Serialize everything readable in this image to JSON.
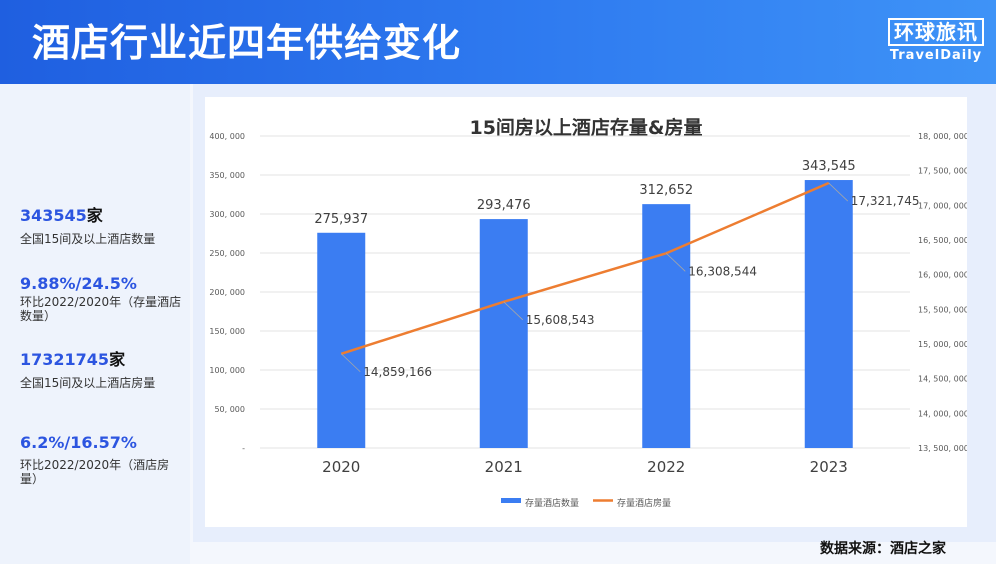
{
  "header": {
    "title": "酒店行业近四年供给变化",
    "logo_cn": "环球旅讯",
    "logo_en": "TravelDaily"
  },
  "stats": [
    {
      "value": "343545",
      "unit": "家",
      "desc": "全国15间及以上酒店数量"
    },
    {
      "value": "9.88%/24.5%",
      "unit": "",
      "desc": "环比2022/2020年（存量酒店数量）"
    },
    {
      "value": "17321745",
      "unit": "家",
      "desc": "全国15间及以上酒店房量"
    },
    {
      "value": "6.2%/16.57%",
      "unit": "",
      "desc": "环比2022/2020年（酒店房量）"
    }
  ],
  "source": "数据来源：酒店之家",
  "chart_data": {
    "type": "bar",
    "title": "15间房以上酒店存量&房量",
    "categories": [
      "2020",
      "2021",
      "2022",
      "2023"
    ],
    "series": [
      {
        "name": "存量酒店数量",
        "type": "bar",
        "axis": "left",
        "values": [
          275937,
          293476,
          312652,
          343545
        ],
        "labels": [
          "275,937",
          "293,476",
          "312,652",
          "343,545"
        ]
      },
      {
        "name": "存量酒店房量",
        "type": "line",
        "axis": "right",
        "values": [
          14859166,
          15608543,
          16308544,
          17321745
        ],
        "labels": [
          "14,859,166",
          "15,608,543",
          "16,308,544",
          "17,321,745"
        ]
      }
    ],
    "ylim_left": [
      0,
      400000
    ],
    "ylim_right": [
      13500000,
      18000000
    ],
    "yticks_left": [
      "-",
      "50, 000",
      "100, 000",
      "150, 000",
      "200, 000",
      "250, 000",
      "300, 000",
      "350, 000",
      "400, 000"
    ],
    "yticks_right": [
      "13, 500, 000",
      "14, 000, 000",
      "14, 500, 000",
      "15, 000, 000",
      "15, 500, 000",
      "16, 000, 000",
      "16, 500, 000",
      "17, 000, 000",
      "17, 500, 000",
      "18, 000, 000"
    ],
    "grid": true,
    "legend": "bottom",
    "colors": {
      "bar": "#3b7df2",
      "line": "#ed7d31"
    }
  }
}
